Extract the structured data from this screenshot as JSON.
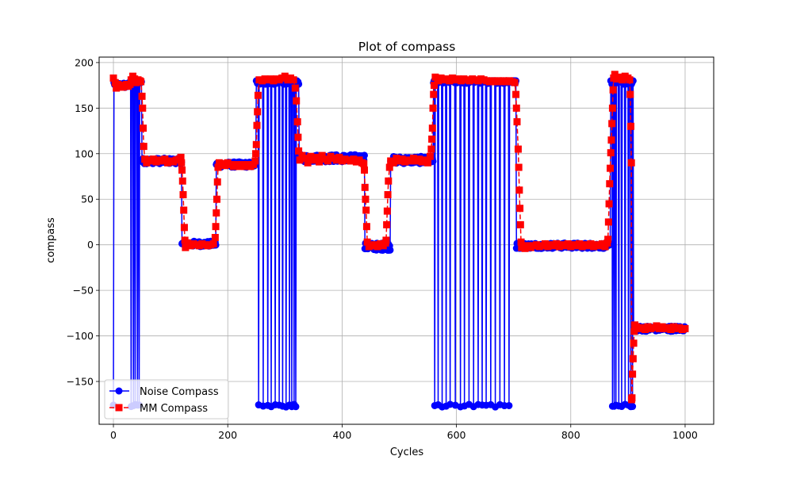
{
  "chart_data": {
    "type": "line",
    "title": "Plot of compass",
    "xlabel": "Cycles",
    "ylabel": "compass",
    "xlim": [
      -25,
      1050
    ],
    "ylim": [
      -197,
      206
    ],
    "xticks": [
      0,
      200,
      400,
      600,
      800,
      1000
    ],
    "yticks": [
      -150,
      -100,
      -50,
      0,
      50,
      100,
      150,
      200
    ],
    "ytick_labels": [
      "−150",
      "−100",
      "−50",
      "0",
      "50",
      "100",
      "150",
      "200"
    ],
    "grid": true,
    "legend_position": "lower-left",
    "colors": {
      "noise": "#0000ff",
      "mm": "#ff0000"
    },
    "series": [
      {
        "name": "Noise Compass",
        "marker": "circle",
        "line_style": "solid",
        "segments": [
          {
            "x0": 0,
            "x1": 30,
            "level": 175,
            "noise": 3
          },
          {
            "x0": 30,
            "x1": 50,
            "level": 180,
            "noise": 4,
            "wraps": [
              31,
              35,
              38,
              42,
              45
            ]
          },
          {
            "x0": 50,
            "x1": 120,
            "level": 92,
            "noise": 3
          },
          {
            "x0": 120,
            "x1": 180,
            "level": 1,
            "noise": 3
          },
          {
            "x0": 180,
            "x1": 250,
            "level": 88,
            "noise": 3
          },
          {
            "x0": 250,
            "x1": 325,
            "level": 179,
            "noise": 3,
            "wraps": [
              254,
              262,
              270,
              276,
              283,
              290,
              296,
              302,
              308,
              312,
              316,
              319
            ]
          },
          {
            "x0": 325,
            "x1": 440,
            "level": 95,
            "noise": 4
          },
          {
            "x0": 440,
            "x1": 485,
            "level": -2,
            "noise": 4
          },
          {
            "x0": 485,
            "x1": 560,
            "level": 93,
            "noise": 4
          },
          {
            "x0": 560,
            "x1": 705,
            "level": 180,
            "noise": 3,
            "wraps": [
              562,
              568,
              575,
              582,
              589,
              598,
              607,
              614,
              622,
              630,
              638,
              645,
              652,
              660,
              668,
              676,
              684,
              692
            ]
          },
          {
            "x0": 705,
            "x1": 870,
            "level": -1,
            "noise": 3
          },
          {
            "x0": 870,
            "x1": 910,
            "level": 180,
            "noise": 4,
            "wraps": [
              873,
              876,
              879,
              884,
              889,
              895,
              901,
              905,
              908
            ]
          },
          {
            "x0": 910,
            "x1": 1000,
            "level": -92,
            "noise": 3
          }
        ],
        "spikes": [
          {
            "x": 0,
            "y": -176
          },
          {
            "x": 1,
            "y": 178
          }
        ]
      },
      {
        "name": "MM Compass",
        "marker": "square",
        "line_style": "dashed",
        "points": [
          [
            0,
            183
          ],
          [
            3,
            178
          ],
          [
            5,
            172
          ],
          [
            8,
            176
          ],
          [
            11,
            174
          ],
          [
            14,
            175
          ],
          [
            17,
            173
          ],
          [
            20,
            175
          ],
          [
            23,
            176
          ],
          [
            26,
            174
          ],
          [
            29,
            176
          ],
          [
            31,
            181
          ],
          [
            34,
            185
          ],
          [
            37,
            182
          ],
          [
            40,
            178
          ],
          [
            43,
            181
          ],
          [
            46,
            180
          ],
          [
            48,
            179
          ],
          [
            50,
            163
          ],
          [
            51,
            150
          ],
          [
            52,
            128
          ],
          [
            53,
            108
          ],
          [
            55,
            94
          ],
          [
            58,
            90
          ],
          [
            62,
            93
          ],
          [
            66,
            92
          ],
          [
            70,
            94
          ],
          [
            75,
            91
          ],
          [
            80,
            93
          ],
          [
            85,
            92
          ],
          [
            90,
            94
          ],
          [
            95,
            90
          ],
          [
            100,
            92
          ],
          [
            105,
            91
          ],
          [
            110,
            93
          ],
          [
            115,
            94
          ],
          [
            118,
            96
          ],
          [
            119,
            90
          ],
          [
            120,
            82
          ],
          [
            121,
            70
          ],
          [
            122,
            55
          ],
          [
            123,
            38
          ],
          [
            124,
            19
          ],
          [
            125,
            5
          ],
          [
            126,
            -3
          ],
          [
            130,
            2
          ],
          [
            135,
            -1
          ],
          [
            140,
            1
          ],
          [
            145,
            0
          ],
          [
            150,
            -1
          ],
          [
            155,
            1
          ],
          [
            160,
            0
          ],
          [
            165,
            -1
          ],
          [
            170,
            0
          ],
          [
            175,
            1
          ],
          [
            178,
            8
          ],
          [
            179,
            20
          ],
          [
            180,
            35
          ],
          [
            181,
            50
          ],
          [
            182,
            69
          ],
          [
            183,
            85
          ],
          [
            185,
            90
          ],
          [
            190,
            89
          ],
          [
            195,
            87
          ],
          [
            200,
            90
          ],
          [
            205,
            88
          ],
          [
            210,
            86
          ],
          [
            215,
            88
          ],
          [
            220,
            86
          ],
          [
            225,
            88
          ],
          [
            230,
            86
          ],
          [
            235,
            88
          ],
          [
            240,
            86
          ],
          [
            245,
            88
          ],
          [
            248,
            92
          ],
          [
            249,
            100
          ],
          [
            250,
            110
          ],
          [
            251,
            131
          ],
          [
            252,
            146
          ],
          [
            253,
            164
          ],
          [
            255,
            181
          ],
          [
            260,
            180
          ],
          [
            265,
            182
          ],
          [
            270,
            181
          ],
          [
            275,
            182
          ],
          [
            280,
            180
          ],
          [
            285,
            182
          ],
          [
            290,
            181
          ],
          [
            295,
            183
          ],
          [
            300,
            185
          ],
          [
            305,
            181
          ],
          [
            310,
            183
          ],
          [
            315,
            181
          ],
          [
            318,
            172
          ],
          [
            320,
            158
          ],
          [
            322,
            135
          ],
          [
            323,
            118
          ],
          [
            324,
            103
          ],
          [
            326,
            93
          ],
          [
            330,
            98
          ],
          [
            335,
            95
          ],
          [
            340,
            90
          ],
          [
            345,
            97
          ],
          [
            350,
            93
          ],
          [
            355,
            96
          ],
          [
            360,
            91
          ],
          [
            365,
            98
          ],
          [
            370,
            94
          ],
          [
            375,
            92
          ],
          [
            380,
            97
          ],
          [
            385,
            95
          ],
          [
            390,
            93
          ],
          [
            395,
            96
          ],
          [
            400,
            92
          ],
          [
            405,
            94
          ],
          [
            410,
            93
          ],
          [
            415,
            92
          ],
          [
            420,
            94
          ],
          [
            425,
            91
          ],
          [
            430,
            93
          ],
          [
            435,
            90
          ],
          [
            438,
            89
          ],
          [
            439,
            82
          ],
          [
            440,
            63
          ],
          [
            441,
            50
          ],
          [
            442,
            38
          ],
          [
            443,
            20
          ],
          [
            444,
            3
          ],
          [
            447,
            -2
          ],
          [
            452,
            -1
          ],
          [
            457,
            0
          ],
          [
            462,
            -2
          ],
          [
            467,
            1
          ],
          [
            472,
            -1
          ],
          [
            476,
            2
          ],
          [
            477,
            5
          ],
          [
            478,
            22
          ],
          [
            479,
            37
          ],
          [
            480,
            55
          ],
          [
            481,
            70
          ],
          [
            483,
            85
          ],
          [
            485,
            92
          ],
          [
            490,
            90
          ],
          [
            495,
            95
          ],
          [
            500,
            92
          ],
          [
            505,
            94
          ],
          [
            510,
            91
          ],
          [
            515,
            93
          ],
          [
            520,
            92
          ],
          [
            525,
            95
          ],
          [
            530,
            92
          ],
          [
            535,
            94
          ],
          [
            540,
            91
          ],
          [
            545,
            93
          ],
          [
            550,
            90
          ],
          [
            554,
            97
          ],
          [
            556,
            105
          ],
          [
            557,
            116
          ],
          [
            558,
            128
          ],
          [
            559,
            150
          ],
          [
            560,
            165
          ],
          [
            561,
            175
          ],
          [
            563,
            184
          ],
          [
            568,
            180
          ],
          [
            573,
            183
          ],
          [
            578,
            181
          ],
          [
            583,
            182
          ],
          [
            588,
            180
          ],
          [
            593,
            183
          ],
          [
            598,
            181
          ],
          [
            603,
            182
          ],
          [
            608,
            180
          ],
          [
            613,
            182
          ],
          [
            618,
            181
          ],
          [
            623,
            180
          ],
          [
            628,
            182
          ],
          [
            633,
            181
          ],
          [
            638,
            180
          ],
          [
            643,
            182
          ],
          [
            648,
            181
          ],
          [
            653,
            180
          ],
          [
            658,
            179
          ],
          [
            663,
            180
          ],
          [
            668,
            179
          ],
          [
            673,
            180
          ],
          [
            678,
            179
          ],
          [
            683,
            180
          ],
          [
            688,
            179
          ],
          [
            693,
            180
          ],
          [
            698,
            179
          ],
          [
            702,
            178
          ],
          [
            704,
            165
          ],
          [
            705,
            150
          ],
          [
            706,
            135
          ],
          [
            708,
            105
          ],
          [
            709,
            85
          ],
          [
            710,
            60
          ],
          [
            711,
            40
          ],
          [
            712,
            22
          ],
          [
            713,
            3
          ],
          [
            714,
            -3
          ],
          [
            720,
            -4
          ],
          [
            725,
            -1
          ],
          [
            730,
            -3
          ],
          [
            735,
            -1
          ],
          [
            740,
            0
          ],
          [
            745,
            -2
          ],
          [
            750,
            -1
          ],
          [
            755,
            1
          ],
          [
            760,
            -2
          ],
          [
            765,
            0
          ],
          [
            770,
            -1
          ],
          [
            775,
            1
          ],
          [
            780,
            -2
          ],
          [
            785,
            0
          ],
          [
            790,
            -1
          ],
          [
            795,
            1
          ],
          [
            800,
            -2
          ],
          [
            805,
            0
          ],
          [
            810,
            -1
          ],
          [
            815,
            1
          ],
          [
            820,
            -2
          ],
          [
            825,
            0
          ],
          [
            830,
            -1
          ],
          [
            835,
            1
          ],
          [
            840,
            -2
          ],
          [
            845,
            0
          ],
          [
            850,
            -1
          ],
          [
            855,
            1
          ],
          [
            860,
            -2
          ],
          [
            864,
            2
          ],
          [
            865,
            6
          ],
          [
            866,
            25
          ],
          [
            867,
            45
          ],
          [
            868,
            67
          ],
          [
            869,
            84
          ],
          [
            870,
            101
          ],
          [
            871,
            115
          ],
          [
            872,
            133
          ],
          [
            873,
            150
          ],
          [
            874,
            170
          ],
          [
            875,
            183
          ],
          [
            877,
            187
          ],
          [
            880,
            182
          ],
          [
            885,
            184
          ],
          [
            890,
            181
          ],
          [
            895,
            185
          ],
          [
            900,
            183
          ],
          [
            903,
            181
          ],
          [
            904,
            165
          ],
          [
            905,
            130
          ],
          [
            906,
            90
          ],
          [
            906.5,
            -170
          ],
          [
            907,
            -168
          ],
          [
            908,
            -142
          ],
          [
            909,
            -125
          ],
          [
            910,
            -108
          ],
          [
            911,
            -95
          ],
          [
            912,
            -88
          ],
          [
            915,
            -90
          ],
          [
            920,
            -92
          ],
          [
            925,
            -91
          ],
          [
            930,
            -93
          ],
          [
            935,
            -90
          ],
          [
            940,
            -92
          ],
          [
            945,
            -91
          ],
          [
            950,
            -89
          ],
          [
            955,
            -92
          ],
          [
            960,
            -90
          ],
          [
            965,
            -92
          ],
          [
            970,
            -91
          ],
          [
            975,
            -93
          ],
          [
            980,
            -90
          ],
          [
            985,
            -92
          ],
          [
            990,
            -91
          ],
          [
            995,
            -93
          ],
          [
            1000,
            -92
          ]
        ]
      }
    ]
  }
}
